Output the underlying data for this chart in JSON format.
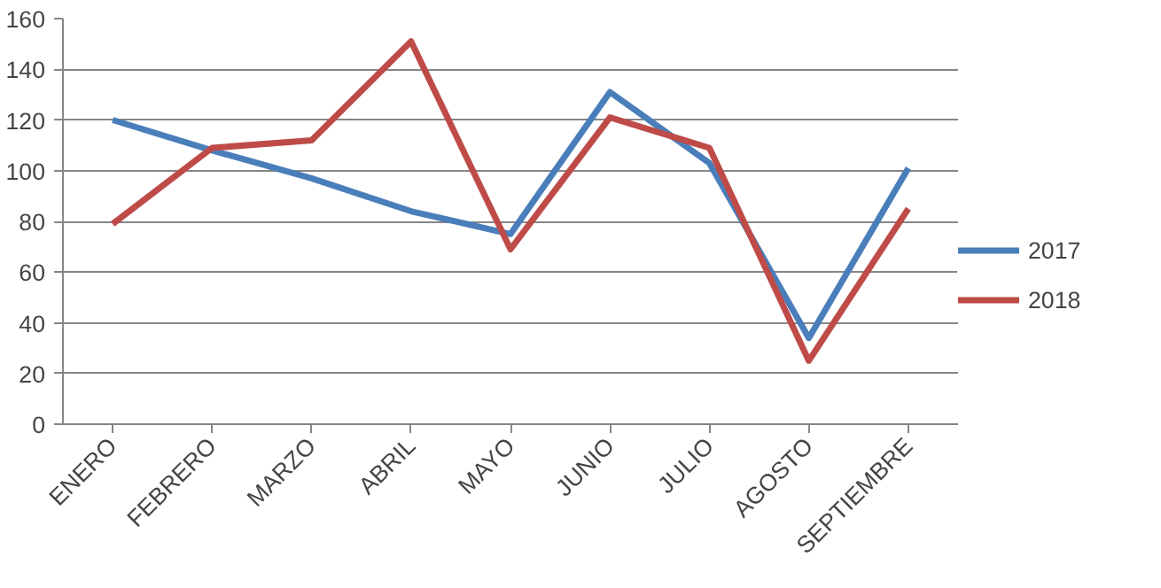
{
  "chart_data": {
    "type": "line",
    "categories": [
      "ENERO",
      "FEBRERO",
      "MARZO",
      "ABRIL",
      "MAYO",
      "JUNIO",
      "JULIO",
      "AGOSTO",
      "SEPTIEMBRE"
    ],
    "series": [
      {
        "name": "2017",
        "color": "#4a7ebb",
        "values": [
          120,
          108,
          97,
          84,
          75,
          131,
          103,
          34,
          101
        ]
      },
      {
        "name": "2018",
        "color": "#be4b48",
        "values": [
          79,
          109,
          112,
          151,
          69,
          121,
          109,
          25,
          85
        ]
      }
    ],
    "ylim": [
      0,
      160
    ],
    "yticks": [
      0,
      20,
      40,
      60,
      80,
      100,
      120,
      140,
      160
    ],
    "grid": "y",
    "legend": "right",
    "marker": "none",
    "line_style": "solid"
  }
}
